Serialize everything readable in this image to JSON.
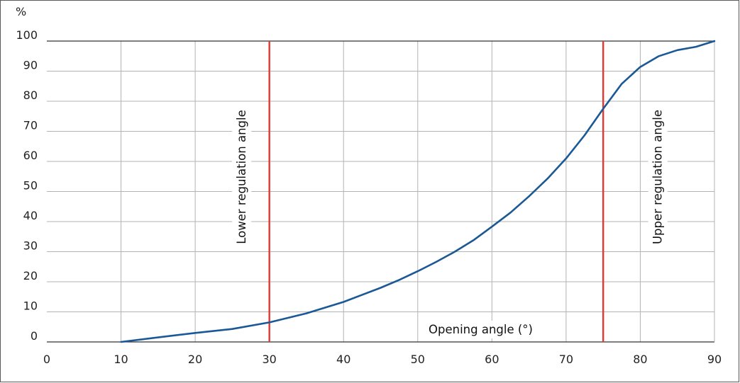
{
  "colors": {
    "curve": "#1b5896",
    "reference_lines": "#e2382f",
    "grid": "#b3b3b3",
    "axis": "#333333"
  },
  "chart_data": {
    "type": "line",
    "title": "",
    "xlabel": "Opening angle (°)",
    "ylabel": "%",
    "xlim": [
      0,
      90
    ],
    "ylim": [
      0,
      100
    ],
    "x_ticks": [
      "0",
      "10",
      "20",
      "30",
      "40",
      "50",
      "60",
      "70",
      "80",
      "90"
    ],
    "y_ticks": [
      "0",
      "10",
      "20",
      "30",
      "40",
      "50",
      "60",
      "70",
      "80",
      "90",
      "100"
    ],
    "grid": true,
    "series": [
      {
        "x": [
          10,
          15,
          20,
          25,
          30,
          35,
          40,
          45,
          47.5,
          50,
          52.5,
          55,
          57.5,
          60,
          62.5,
          65,
          67.5,
          70,
          72.5,
          75,
          77.5,
          80,
          82.5,
          85,
          87.5,
          90
        ],
        "y": [
          0,
          1.5,
          3,
          4.3,
          6.5,
          9.5,
          13.3,
          18,
          20.6,
          23.5,
          26.6,
          30,
          33.8,
          38.3,
          43,
          48.4,
          54.3,
          61,
          68.7,
          77.5,
          85.8,
          91.4,
          95,
          97,
          98.1,
          100
        ]
      }
    ],
    "reference_lines": [
      {
        "x": 30,
        "label": "Lower regulation angle"
      },
      {
        "x": 75,
        "label": "Upper regulation angle"
      }
    ]
  }
}
